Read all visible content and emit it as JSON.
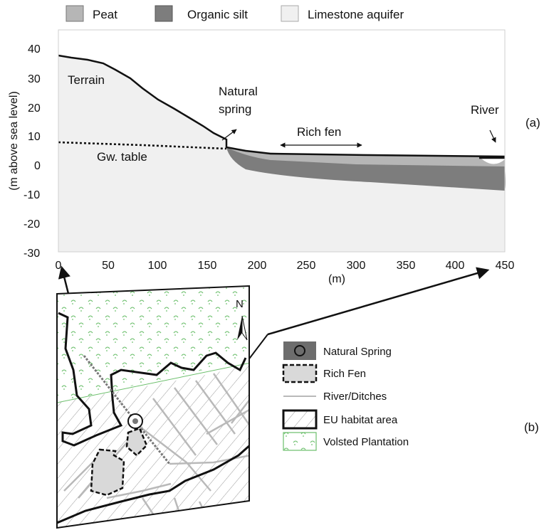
{
  "legend_top": {
    "peat": "Peat",
    "organic_silt": "Organic silt",
    "limestone": "Limestone aquifer",
    "colors": {
      "peat": "#b6b6b6",
      "organic_silt": "#7d7d7d",
      "limestone": "#f0f0f0"
    }
  },
  "panel_a": {
    "tag": "(a)",
    "ylabel": "(m above sea level)",
    "xlabel": "(m)",
    "x_ticks": [
      "0",
      "50",
      "100",
      "150",
      "200",
      "250",
      "300",
      "350",
      "400",
      "450"
    ],
    "y_ticks": [
      "40",
      "30",
      "20",
      "10",
      "0",
      "-10",
      "-20",
      "-30"
    ],
    "labels": {
      "terrain": "Terrain",
      "spring_line1": "Natural",
      "spring_line2": "spring",
      "rich_fen": "Rich fen",
      "river": "River",
      "gw_table": "Gw. table"
    }
  },
  "panel_b": {
    "tag": "(b)",
    "north": "N",
    "legend": {
      "spring": "Natural Spring",
      "rich_fen": "Rich Fen",
      "ditches": "River/Ditches",
      "habitat": "EU habitat area",
      "plantation": "Volsted Plantation"
    }
  },
  "chart_data": {
    "type": "area",
    "x_range": [
      0,
      450
    ],
    "y_range": [
      -30,
      45
    ],
    "xlabel": "(m)",
    "ylabel": "(m above sea level)",
    "series": [
      {
        "name": "Terrain",
        "x": [
          0,
          15,
          30,
          45,
          60,
          75,
          90,
          105,
          120,
          135,
          150,
          165,
          175,
          200,
          250,
          300,
          350,
          400,
          450
        ],
        "y": [
          37.5,
          36,
          35.5,
          34.5,
          31,
          27,
          22,
          18,
          16,
          13,
          9.5,
          6,
          5,
          3.5,
          3,
          3,
          3,
          3,
          3
        ]
      },
      {
        "name": "Gw. table",
        "x": [
          0,
          50,
          100,
          150,
          175
        ],
        "y": [
          7.5,
          7,
          6.5,
          6,
          5.5
        ]
      }
    ],
    "annotations": [
      "Natural spring",
      "Rich fen",
      "River"
    ]
  }
}
